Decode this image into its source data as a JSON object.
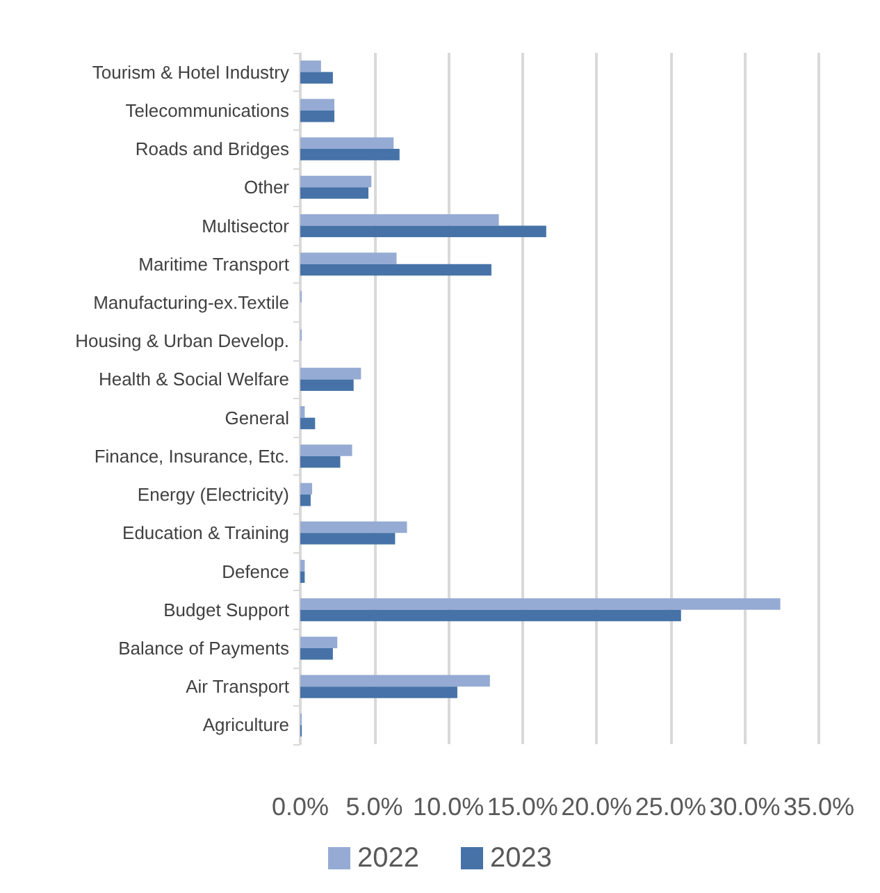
{
  "chart_data": {
    "type": "bar",
    "orientation": "horizontal",
    "categories": [
      "Tourism & Hotel Industry",
      "Telecommunications",
      "Roads and Bridges",
      "Other",
      "Multisector",
      "Maritime Transport",
      "Manufacturing-ex.Textile",
      "Housing & Urban Develop.",
      "Health & Social Welfare",
      "General",
      "Finance, Insurance, Etc.",
      "Energy (Electricity)",
      "Education & Training",
      "Defence",
      "Budget Support",
      "Balance of Payments",
      "Air Transport",
      "Agriculture"
    ],
    "series": [
      {
        "name": "2022",
        "color": "#95abd4",
        "values": [
          1.4,
          2.3,
          6.3,
          4.8,
          13.4,
          6.5,
          0.1,
          0.1,
          4.1,
          0.3,
          3.5,
          0.8,
          7.2,
          0.3,
          32.4,
          2.5,
          12.8,
          0.1
        ]
      },
      {
        "name": "2023",
        "color": "#4672a8",
        "values": [
          2.2,
          2.3,
          6.7,
          4.6,
          16.6,
          12.9,
          0,
          0,
          3.6,
          1.0,
          2.7,
          0.7,
          6.4,
          0.3,
          25.7,
          2.2,
          10.6,
          0.1
        ]
      }
    ],
    "xlim": [
      0,
      35
    ],
    "xticks": [
      {
        "value": 0,
        "label": "0.0%"
      },
      {
        "value": 5,
        "label": "5.0%"
      },
      {
        "value": 10,
        "label": "10.0%"
      },
      {
        "value": 15,
        "label": "15.0%"
      },
      {
        "value": 20,
        "label": "20.0%"
      },
      {
        "value": 25,
        "label": "25.0%"
      },
      {
        "value": 30,
        "label": "30.0%"
      },
      {
        "value": 35,
        "label": "35.0%"
      }
    ],
    "grid": "x",
    "legend": "bottom"
  }
}
